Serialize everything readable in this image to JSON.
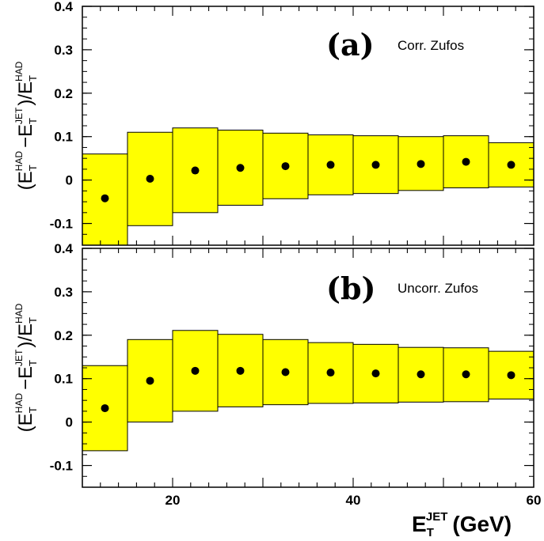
{
  "chart_data": [
    {
      "type": "scatter",
      "panel_tag": "(a)",
      "panel_label": "Corr. Zufos",
      "ylabel": {
        "paren_open": "(",
        "e1": "E",
        "sub1": "T",
        "sup1": "HAD",
        "minus": "−",
        "e2": "E",
        "sub2": "T",
        "sup2": "JET",
        "paren_close": ")",
        "slash": "/",
        "e3": "E",
        "sub3": "T",
        "sup3": "HAD"
      },
      "xlim": [
        10,
        60
      ],
      "ylim": [
        -0.15,
        0.4
      ],
      "yticks": [
        -0.1,
        0,
        0.1,
        0.2,
        0.3,
        0.4
      ],
      "ytick_labels": [
        "-0.1",
        "0",
        "0.1",
        "0.2",
        "0.3",
        "0.4"
      ],
      "band_color": "#ffff00",
      "bins": [
        {
          "x_low": 10,
          "x_high": 15,
          "x": 12.5,
          "y": -0.042,
          "band_low": -0.15,
          "band_high": 0.06
        },
        {
          "x_low": 15,
          "x_high": 20,
          "x": 17.5,
          "y": 0.003,
          "band_low": -0.105,
          "band_high": 0.11
        },
        {
          "x_low": 20,
          "x_high": 25,
          "x": 22.5,
          "y": 0.022,
          "band_low": -0.075,
          "band_high": 0.12
        },
        {
          "x_low": 25,
          "x_high": 30,
          "x": 27.5,
          "y": 0.028,
          "band_low": -0.058,
          "band_high": 0.115
        },
        {
          "x_low": 30,
          "x_high": 35,
          "x": 32.5,
          "y": 0.032,
          "band_low": -0.043,
          "band_high": 0.108
        },
        {
          "x_low": 35,
          "x_high": 40,
          "x": 37.5,
          "y": 0.035,
          "band_low": -0.034,
          "band_high": 0.104
        },
        {
          "x_low": 40,
          "x_high": 45,
          "x": 42.5,
          "y": 0.035,
          "band_low": -0.031,
          "band_high": 0.102
        },
        {
          "x_low": 45,
          "x_high": 50,
          "x": 47.5,
          "y": 0.037,
          "band_low": -0.024,
          "band_high": 0.1
        },
        {
          "x_low": 50,
          "x_high": 55,
          "x": 52.5,
          "y": 0.042,
          "band_low": -0.018,
          "band_high": 0.102
        },
        {
          "x_low": 55,
          "x_high": 60,
          "x": 57.5,
          "y": 0.035,
          "band_low": -0.016,
          "band_high": 0.086
        }
      ]
    },
    {
      "type": "scatter",
      "panel_tag": "(b)",
      "panel_label": "Uncorr. Zufos",
      "ylabel": {
        "paren_open": "(",
        "e1": "E",
        "sub1": "T",
        "sup1": "HAD",
        "minus": "−",
        "e2": "E",
        "sub2": "T",
        "sup2": "JET",
        "paren_close": ")",
        "slash": "/",
        "e3": "E",
        "sub3": "T",
        "sup3": "HAD"
      },
      "xlim": [
        10,
        60
      ],
      "ylim": [
        -0.15,
        0.4
      ],
      "yticks": [
        -0.1,
        0,
        0.1,
        0.2,
        0.3,
        0.4
      ],
      "ytick_labels": [
        "-0.1",
        "0",
        "0.1",
        "0.2",
        "0.3",
        "0.4"
      ],
      "xticks": [
        20,
        40,
        60
      ],
      "xtick_labels": [
        "20",
        "40",
        "60"
      ],
      "xlabel": {
        "e": "E",
        "sub": "T",
        "sup": "JET",
        "unit": "(GeV)"
      },
      "band_color": "#ffff00",
      "bins": [
        {
          "x_low": 10,
          "x_high": 15,
          "x": 12.5,
          "y": 0.032,
          "band_low": -0.066,
          "band_high": 0.13
        },
        {
          "x_low": 15,
          "x_high": 20,
          "x": 17.5,
          "y": 0.095,
          "band_low": 0.0,
          "band_high": 0.19
        },
        {
          "x_low": 20,
          "x_high": 25,
          "x": 22.5,
          "y": 0.118,
          "band_low": 0.025,
          "band_high": 0.211
        },
        {
          "x_low": 25,
          "x_high": 30,
          "x": 27.5,
          "y": 0.118,
          "band_low": 0.035,
          "band_high": 0.202
        },
        {
          "x_low": 30,
          "x_high": 35,
          "x": 32.5,
          "y": 0.115,
          "band_low": 0.04,
          "band_high": 0.19
        },
        {
          "x_low": 35,
          "x_high": 40,
          "x": 37.5,
          "y": 0.114,
          "band_low": 0.043,
          "band_high": 0.183
        },
        {
          "x_low": 40,
          "x_high": 45,
          "x": 42.5,
          "y": 0.112,
          "band_low": 0.044,
          "band_high": 0.179
        },
        {
          "x_low": 45,
          "x_high": 50,
          "x": 47.5,
          "y": 0.11,
          "band_low": 0.046,
          "band_high": 0.172
        },
        {
          "x_low": 50,
          "x_high": 55,
          "x": 52.5,
          "y": 0.11,
          "band_low": 0.047,
          "band_high": 0.171
        },
        {
          "x_low": 55,
          "x_high": 60,
          "x": 57.5,
          "y": 0.108,
          "band_low": 0.053,
          "band_high": 0.163
        }
      ]
    }
  ]
}
